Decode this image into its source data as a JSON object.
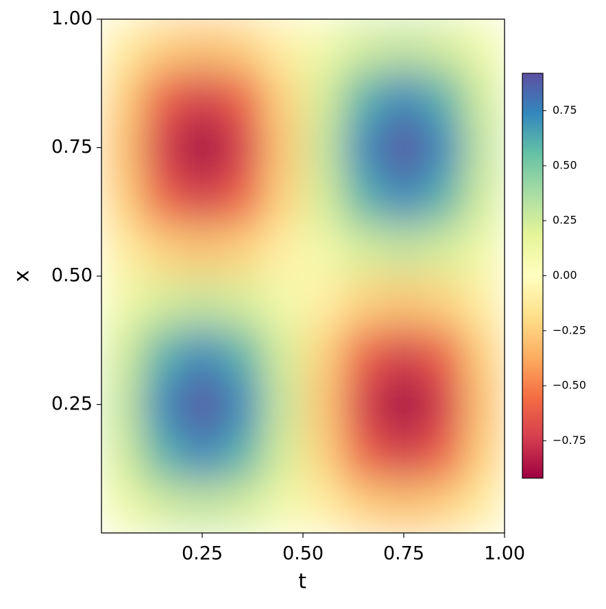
{
  "chart_data": {
    "type": "heatmap",
    "xlabel": "t",
    "ylabel": "x",
    "xlim": [
      0,
      1
    ],
    "ylim": [
      0,
      1
    ],
    "xticks": [
      0.25,
      {
        "value": 0.5,
        "label": "0.50"
      },
      0.75,
      {
        "value": 1,
        "label": "1.00"
      }
    ],
    "yticks": [
      0.25,
      {
        "value": 0.5,
        "label": "0.50"
      },
      0.75,
      {
        "value": 1,
        "label": "1.00"
      }
    ],
    "colormap": [
      "#9e0142",
      "#d53e4f",
      "#f46d43",
      "#fdae61",
      "#fee08b",
      "#ffffbf",
      "#e6f598",
      "#abdda4",
      "#66c2a5",
      "#3288bd",
      "#5e4fa2"
    ],
    "clim": [
      -0.92,
      0.92
    ],
    "cticks": [
      {
        "value": -0.75,
        "label": "−0.75"
      },
      {
        "value": -0.5,
        "label": "−0.50"
      },
      {
        "value": -0.25,
        "label": "−0.25"
      },
      {
        "value": 0,
        "label": "0.00"
      },
      0.25,
      {
        "value": 0.5,
        "label": "0.50"
      },
      0.75
    ],
    "z": [
      [
        0.09,
        0.23,
        0.28,
        0.23,
        0.09,
        -0.09,
        -0.23,
        -0.28,
        -0.23,
        -0.09
      ],
      [
        0.23,
        0.6,
        0.74,
        0.6,
        0.23,
        -0.23,
        -0.6,
        -0.74,
        -0.6,
        -0.23
      ],
      [
        0.28,
        0.74,
        0.92,
        0.74,
        0.28,
        -0.28,
        -0.74,
        -0.92,
        -0.74,
        -0.28
      ],
      [
        0.23,
        0.6,
        0.74,
        0.6,
        0.23,
        -0.23,
        -0.6,
        -0.74,
        -0.6,
        -0.23
      ],
      [
        0.09,
        0.23,
        0.28,
        0.23,
        0.09,
        -0.09,
        -0.23,
        -0.28,
        -0.23,
        -0.09
      ],
      [
        -0.09,
        -0.23,
        -0.28,
        -0.23,
        -0.09,
        0.09,
        0.23,
        0.28,
        0.23,
        0.09
      ],
      [
        -0.23,
        -0.6,
        -0.74,
        -0.6,
        -0.23,
        0.23,
        0.6,
        0.74,
        0.6,
        0.23
      ],
      [
        -0.28,
        -0.74,
        -0.92,
        -0.74,
        -0.28,
        0.28,
        0.74,
        0.92,
        0.74,
        0.28
      ],
      [
        -0.23,
        -0.6,
        -0.74,
        -0.6,
        -0.23,
        0.23,
        0.6,
        0.74,
        0.6,
        0.23
      ],
      [
        -0.09,
        -0.23,
        -0.28,
        -0.23,
        -0.09,
        0.09,
        0.23,
        0.28,
        0.23,
        0.09
      ]
    ]
  }
}
